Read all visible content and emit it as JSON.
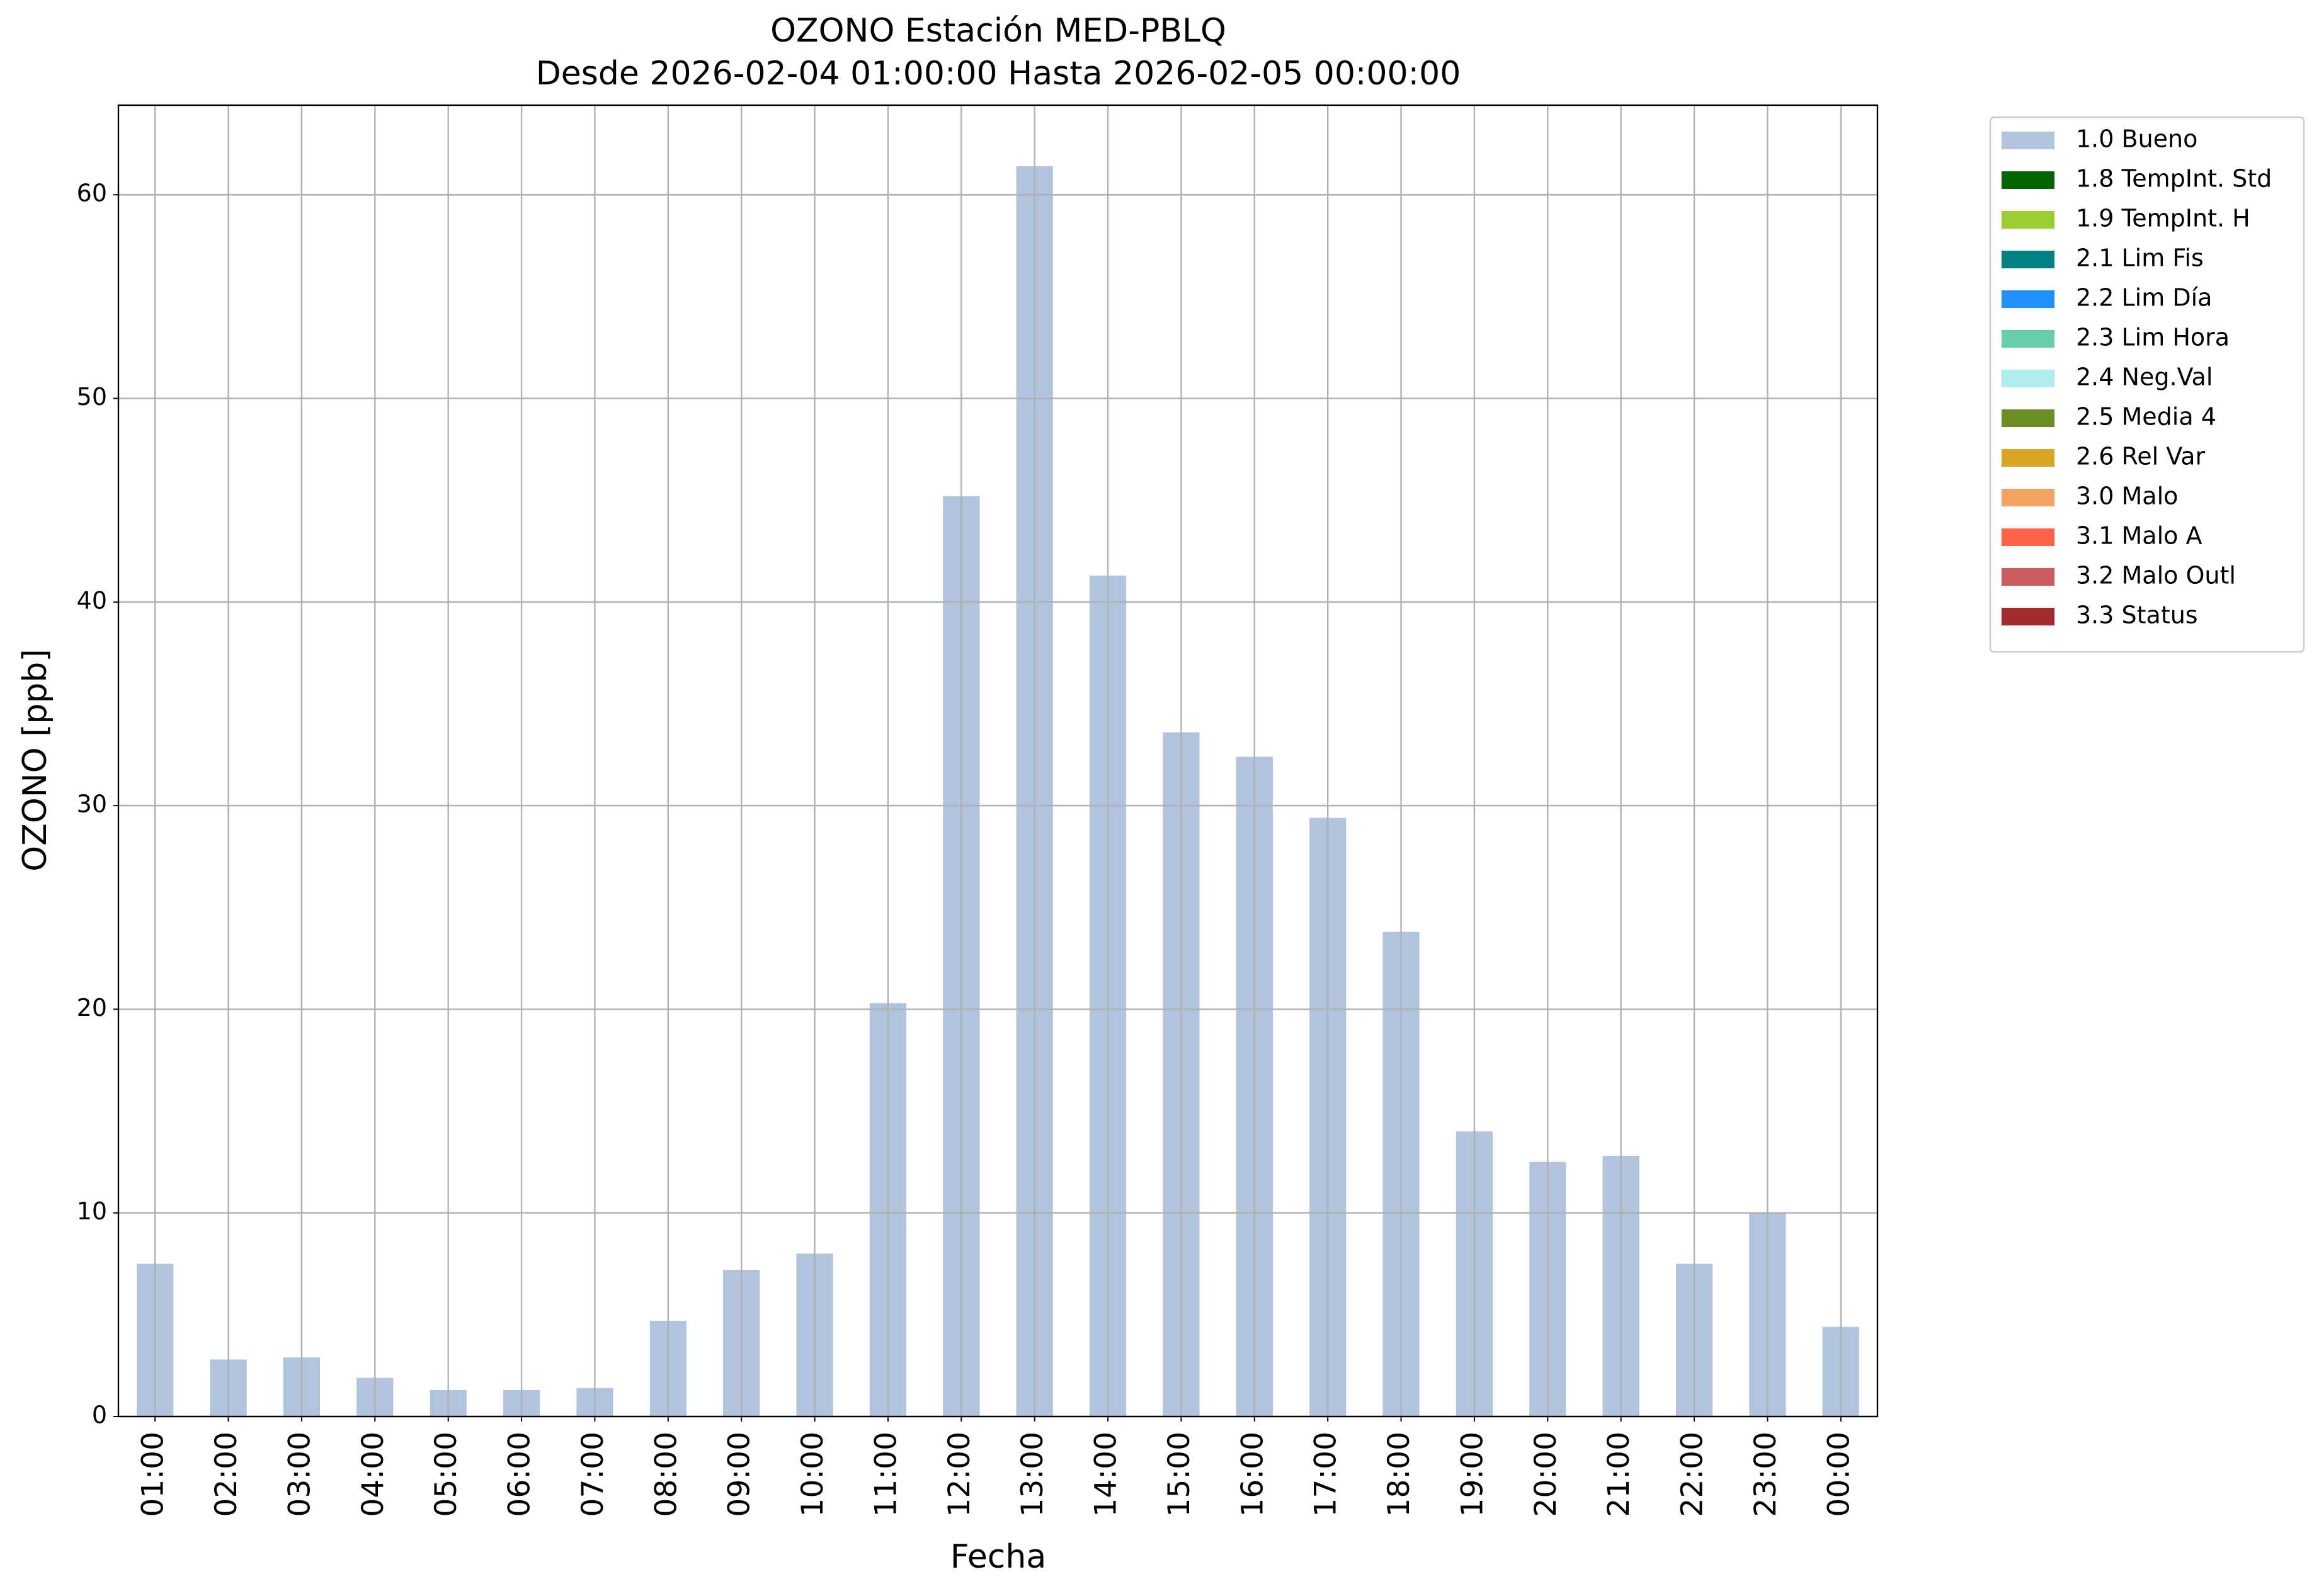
{
  "chart_data": {
    "type": "bar",
    "title": "OZONO Estación MED-PBLQ",
    "subtitle": "Desde 2026-02-04 01:00:00 Hasta 2026-02-05 00:00:00",
    "x_label": "Fecha",
    "y_label": "OZONO [ppb]",
    "categories": [
      "01:00",
      "02:00",
      "03:00",
      "04:00",
      "05:00",
      "06:00",
      "07:00",
      "08:00",
      "09:00",
      "10:00",
      "11:00",
      "12:00",
      "13:00",
      "14:00",
      "15:00",
      "16:00",
      "17:00",
      "18:00",
      "19:00",
      "20:00",
      "21:00",
      "22:00",
      "23:00",
      "00:00"
    ],
    "series": [
      {
        "name": "1.0 Bueno",
        "color": "#b0c4de",
        "values": [
          7.5,
          2.8,
          2.9,
          1.9,
          1.3,
          1.3,
          1.4,
          4.7,
          7.2,
          8.0,
          20.3,
          45.2,
          61.4,
          41.3,
          33.6,
          32.4,
          29.4,
          23.8,
          14.0,
          12.5,
          12.8,
          7.5,
          10.0,
          4.4
        ]
      },
      {
        "name": "1.8 TempInt. Std",
        "color": "#006400"
      },
      {
        "name": "1.9 TempInt. H",
        "color": "#9acd32"
      },
      {
        "name": "2.1 Lim Fis",
        "color": "#008080"
      },
      {
        "name": "2.2 Lim Día",
        "color": "#1e90ff"
      },
      {
        "name": "2.3 Lim Hora",
        "color": "#66cdaa"
      },
      {
        "name": "2.4 Neg.Val",
        "color": "#afeeee"
      },
      {
        "name": "2.5 Media 4",
        "color": "#6b8e23"
      },
      {
        "name": "2.6 Rel Var",
        "color": "#daa520"
      },
      {
        "name": "3.0 Malo",
        "color": "#f4a460"
      },
      {
        "name": "3.1 Malo A",
        "color": "#ff6347"
      },
      {
        "name": "3.2 Malo Outl",
        "color": "#cd5c5c"
      },
      {
        "name": "3.3 Status",
        "color": "#a52a2a"
      }
    ],
    "ylim": [
      0,
      64.4
    ],
    "yticks": [
      0,
      10,
      20,
      30,
      40,
      50,
      60
    ],
    "grid": true,
    "legend": "outside upper right"
  }
}
